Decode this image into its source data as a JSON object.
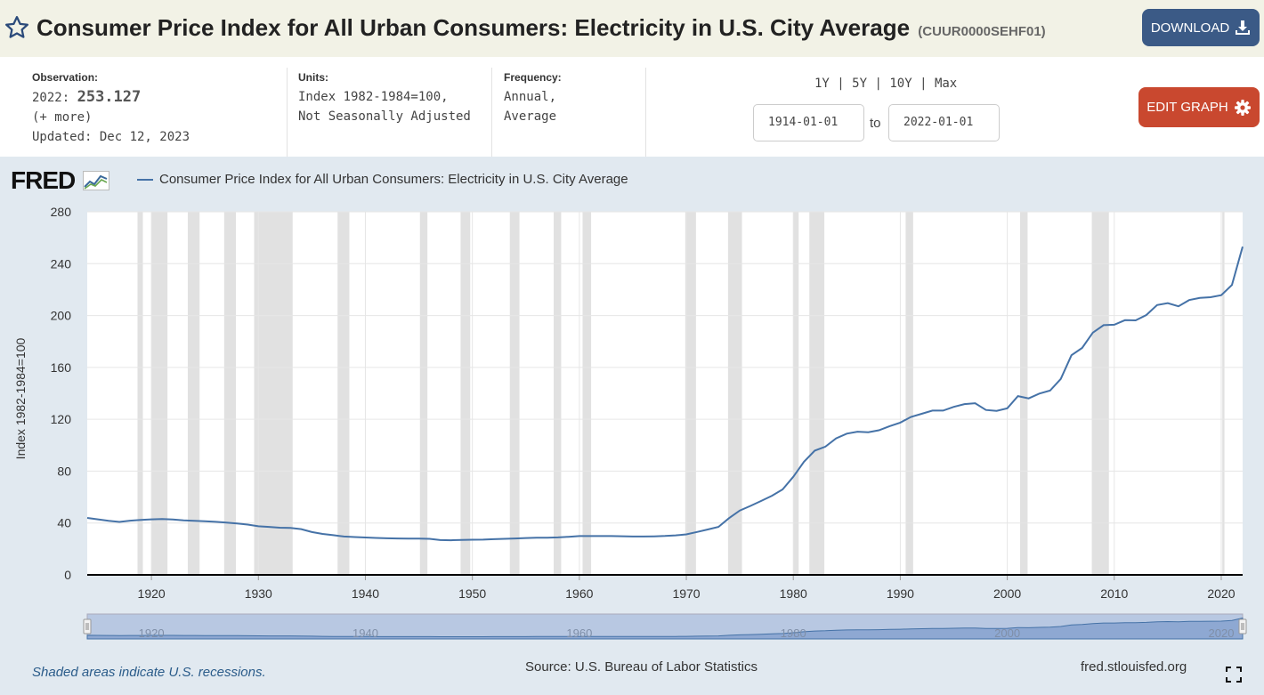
{
  "header": {
    "title": "Consumer Price Index for All Urban Consumers: Electricity in U.S. City Average",
    "series_id": "(CUUR0000SEHF01)",
    "download_label": "DOWNLOAD"
  },
  "info": {
    "observation_label": "Observation:",
    "observation_year": "2022:",
    "observation_value": "253.127",
    "more": "(+ more)",
    "updated": "Updated: Dec 12, 2023",
    "units_label": "Units:",
    "units_line1": "Index 1982-1984=100,",
    "units_line2": "Not Seasonally Adjusted",
    "frequency_label": "Frequency:",
    "frequency_line1": "Annual,",
    "frequency_line2": "Average"
  },
  "range": {
    "r1": "1Y",
    "r5": "5Y",
    "r10": "10Y",
    "max": "Max",
    "sep": "|",
    "start_date": "1914-01-01",
    "to_label": "to",
    "end_date": "2022-01-01",
    "edit_label": "EDIT GRAPH"
  },
  "footer": {
    "logo": "FRED",
    "recession_note": "Shaded areas indicate U.S. recessions.",
    "source": "Source: U.S. Bureau of Labor Statistics",
    "site": "fred.stlouisfed.org"
  },
  "colors": {
    "line": "#4572a7",
    "recession": "#e1e1e1",
    "download": "#3b5a86",
    "edit": "#c9482f"
  },
  "chart_data": {
    "type": "line",
    "title": "Consumer Price Index for All Urban Consumers: Electricity in U.S. City Average",
    "ylabel": "Index 1982-1984=100",
    "xlabel": "",
    "xlim": [
      1914,
      2022
    ],
    "ylim": [
      0,
      280
    ],
    "yticks": [
      0,
      40,
      80,
      120,
      160,
      200,
      240,
      280
    ],
    "xticks": [
      1920,
      1930,
      1940,
      1950,
      1960,
      1970,
      1980,
      1990,
      2000,
      2010,
      2020
    ],
    "navigator_ticks": [
      1920,
      1940,
      1960,
      1980,
      2000,
      2020
    ],
    "recessions": [
      [
        1918.7,
        1919.2
      ],
      [
        1920.0,
        1921.5
      ],
      [
        1923.4,
        1924.5
      ],
      [
        1926.8,
        1927.9
      ],
      [
        1929.6,
        1933.2
      ],
      [
        1937.4,
        1938.5
      ],
      [
        1945.1,
        1945.8
      ],
      [
        1948.9,
        1949.8
      ],
      [
        1953.5,
        1954.4
      ],
      [
        1957.6,
        1958.3
      ],
      [
        1960.3,
        1961.1
      ],
      [
        1969.9,
        1970.9
      ],
      [
        1973.9,
        1975.2
      ],
      [
        1980.0,
        1980.5
      ],
      [
        1981.5,
        1982.9
      ],
      [
        1990.5,
        1991.2
      ],
      [
        2001.2,
        2001.9
      ],
      [
        2007.9,
        2009.5
      ],
      [
        2020.1,
        2020.3
      ]
    ],
    "series": [
      {
        "name": "Consumer Price Index for All Urban Consumers: Electricity in U.S. City Average",
        "x": [
          1914,
          1915,
          1916,
          1917,
          1918,
          1919,
          1920,
          1921,
          1922,
          1923,
          1924,
          1925,
          1926,
          1927,
          1928,
          1929,
          1930,
          1931,
          1932,
          1933,
          1934,
          1935,
          1936,
          1937,
          1938,
          1939,
          1940,
          1941,
          1942,
          1943,
          1944,
          1945,
          1946,
          1947,
          1948,
          1949,
          1950,
          1951,
          1952,
          1953,
          1954,
          1955,
          1956,
          1957,
          1958,
          1959,
          1960,
          1961,
          1962,
          1963,
          1964,
          1965,
          1966,
          1967,
          1968,
          1969,
          1970,
          1971,
          1972,
          1973,
          1974,
          1975,
          1976,
          1977,
          1978,
          1979,
          1980,
          1981,
          1982,
          1983,
          1984,
          1985,
          1986,
          1987,
          1988,
          1989,
          1990,
          1991,
          1992,
          1993,
          1994,
          1995,
          1996,
          1997,
          1998,
          1999,
          2000,
          2001,
          2002,
          2003,
          2004,
          2005,
          2006,
          2007,
          2008,
          2009,
          2010,
          2011,
          2012,
          2013,
          2014,
          2015,
          2016,
          2017,
          2018,
          2019,
          2020,
          2021,
          2022
        ],
        "values": [
          43.9,
          42.8,
          41.7,
          40.8,
          41.8,
          42.4,
          42.8,
          43.1,
          42.7,
          42.0,
          41.7,
          41.3,
          40.9,
          40.3,
          39.6,
          38.8,
          37.5,
          37.0,
          36.4,
          36.2,
          35.3,
          33.0,
          31.6,
          30.6,
          29.6,
          29.2,
          28.8,
          28.5,
          28.2,
          28.1,
          28.0,
          28.0,
          27.8,
          26.8,
          26.7,
          27.0,
          27.1,
          27.2,
          27.5,
          27.8,
          28.1,
          28.4,
          28.6,
          28.7,
          28.9,
          29.4,
          29.9,
          29.9,
          29.9,
          29.9,
          29.8,
          29.6,
          29.6,
          29.7,
          30.0,
          30.5,
          31.2,
          33.1,
          35.0,
          37.0,
          43.8,
          49.6,
          53.2,
          57.0,
          61.0,
          65.9,
          75.6,
          87.2,
          95.8,
          98.9,
          105.3,
          108.9,
          110.4,
          110.0,
          111.5,
          114.7,
          117.4,
          121.8,
          124.2,
          126.7,
          126.7,
          129.6,
          131.7,
          132.4,
          127.2,
          126.5,
          128.5,
          137.9,
          136.1,
          139.8,
          142.1,
          151.1,
          169.4,
          175.0,
          186.8,
          192.6,
          192.9,
          196.4,
          196.3,
          200.4,
          208.1,
          209.5,
          207.1,
          211.9,
          213.6,
          214.1,
          215.7,
          223.6,
          253.1
        ]
      }
    ]
  }
}
